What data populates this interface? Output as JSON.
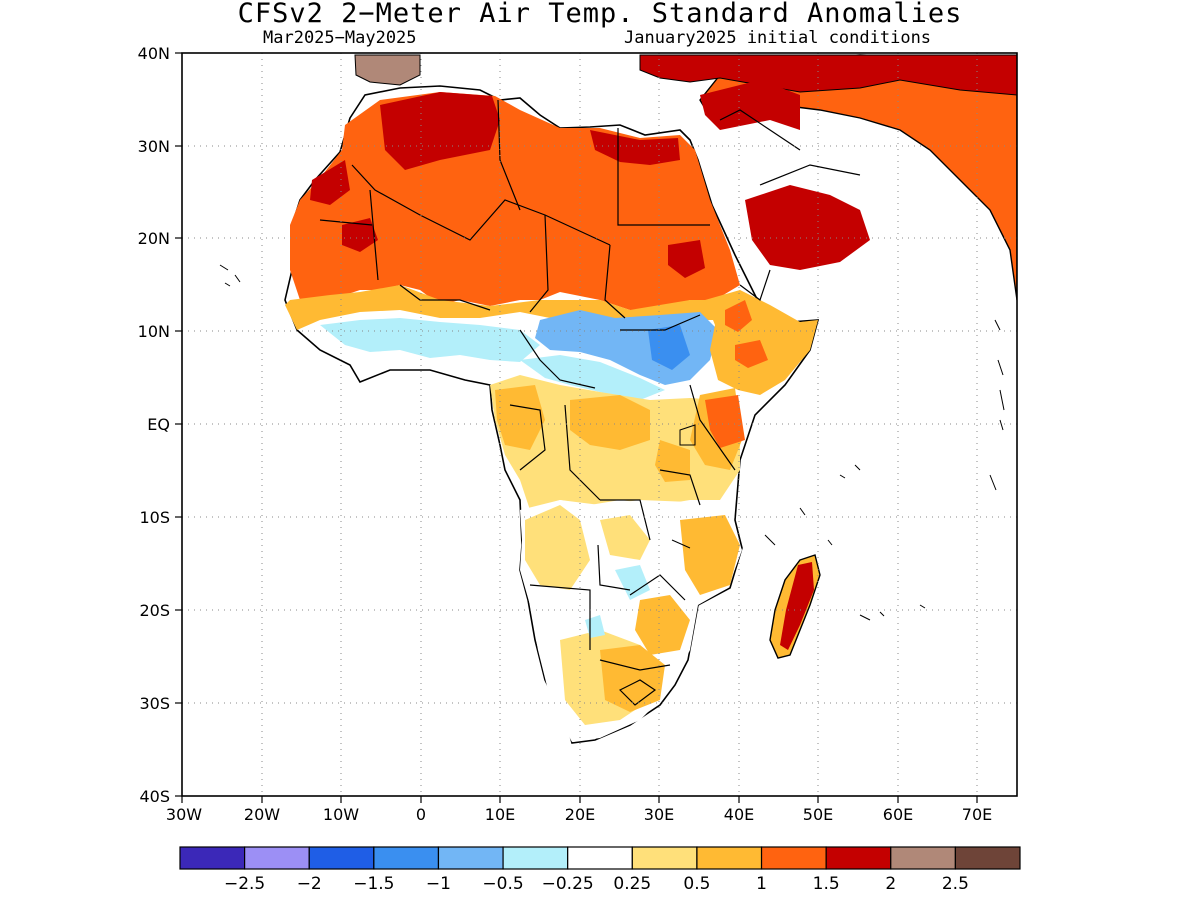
{
  "title": "CFSv2 2−Meter Air Temp. Standard Anomalies",
  "subtitle_left": "Mar2025−May2025",
  "subtitle_right": "January2025 initial conditions",
  "map": {
    "projection": "equirectangular",
    "lon_range": [
      -30,
      75
    ],
    "lat_range": [
      -40,
      40
    ],
    "grid": "dotted",
    "lat_ticks": [
      "40N",
      "30N",
      "20N",
      "10N",
      "EQ",
      "10S",
      "20S",
      "30S",
      "40S"
    ],
    "lon_ticks": [
      "30W",
      "20W",
      "10W",
      "0",
      "10E",
      "20E",
      "30E",
      "40E",
      "50E",
      "60E",
      "70E"
    ],
    "background": "#ffffff"
  },
  "colorbar": {
    "colors": [
      "#3b28b8",
      "#9c8ff5",
      "#1f5ee6",
      "#3a8ff0",
      "#72b6f5",
      "#b3effa",
      "#ffffff",
      "#ffe07a",
      "#ffba33",
      "#ff6310",
      "#c40000",
      "#b08878",
      "#6e4438"
    ],
    "labels": [
      "−2.5",
      "−2",
      "−1.5",
      "−1",
      "−0.5",
      "−0.25",
      "0.25",
      "0.5",
      "1",
      "1.5",
      "2",
      "2.5"
    ]
  }
}
